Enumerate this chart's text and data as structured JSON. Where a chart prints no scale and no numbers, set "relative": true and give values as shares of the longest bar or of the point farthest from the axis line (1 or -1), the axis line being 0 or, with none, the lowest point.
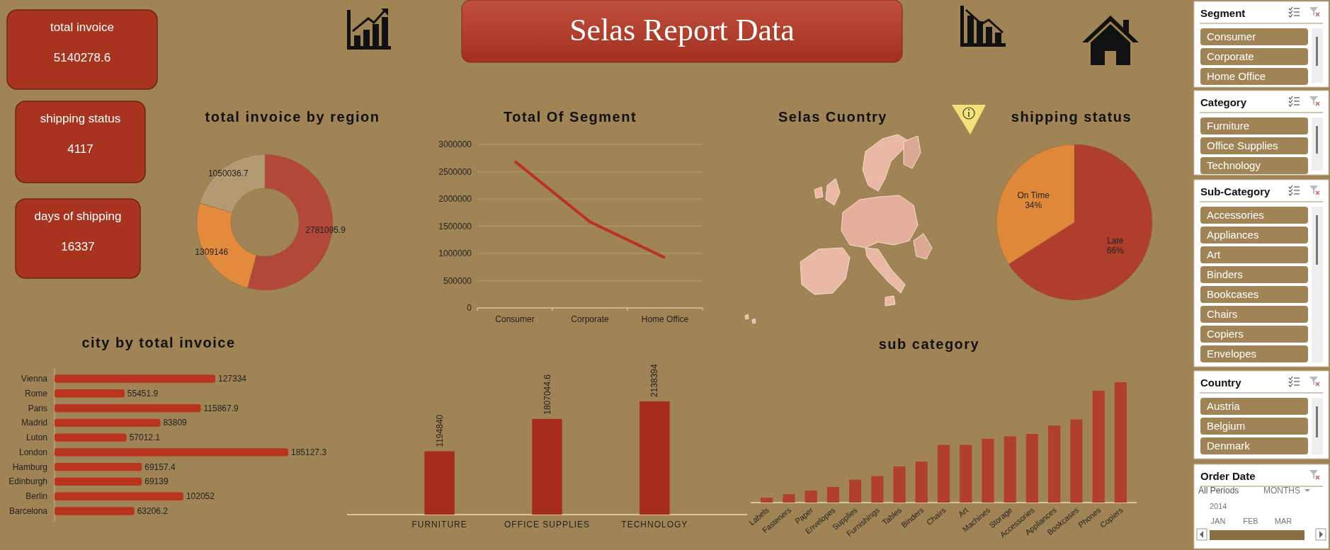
{
  "chart_data": [
    {
      "type": "other",
      "title": "Selas Report Data"
    },
    {
      "type": "other",
      "title": "total invoice",
      "annotations": [
        "5140278.6"
      ]
    },
    {
      "type": "other",
      "title": "shipping status",
      "annotations": [
        "4117"
      ]
    },
    {
      "type": "other",
      "title": "days of shipping",
      "annotations": [
        "16337"
      ]
    },
    {
      "type": "donut",
      "title": "total invoice by region",
      "categories": [
        null,
        null,
        null
      ],
      "values": [
        2781095.9,
        1309146,
        1050036.7
      ],
      "colors": [
        "#b2483a",
        "#e38a3c",
        "#b49a72"
      ],
      "data_labels": true
    },
    {
      "type": "line",
      "title": "Total Of Segment",
      "categories": [
        "Consumer",
        "Corporate",
        "Home Office"
      ],
      "series": [
        {
          "color": "#b8341f",
          "values": [
            2690000,
            1580000,
            920000
          ]
        }
      ],
      "ylim": [
        0,
        3000000
      ],
      "yticks": [
        0,
        500000,
        1000000,
        1500000,
        2000000,
        2500000,
        3000000
      ],
      "grid": "y",
      "marker": "none"
    },
    {
      "type": "other",
      "title": "Selas Cuontry"
    },
    {
      "type": "pie",
      "title": "shipping status",
      "categories": [
        "Late",
        "On Time"
      ],
      "values": [
        66,
        34
      ],
      "colors": [
        "#b03e2c",
        "#e0883a"
      ],
      "value_labels": [
        "66%",
        "34%"
      ]
    },
    {
      "type": "bar",
      "orientation": "horizontal",
      "title": "city by total invoice",
      "categories": [
        "Vienna",
        "Rome",
        "Paris",
        "Madrid",
        "Luton",
        "London",
        "Hamburg",
        "Edinburgh",
        "Berlin",
        "Barcelona"
      ],
      "values": [
        127334,
        55451.9,
        115867.9,
        83809,
        57012.1,
        185127.3,
        69157.4,
        69139,
        102052,
        63206.2
      ],
      "color": "#b8341f",
      "data_labels": true,
      "tick_labels": "y"
    },
    {
      "type": "bar",
      "categories": [
        "FURNITURE",
        "OFFICE SUPPLIES",
        "TECHNOLOGY"
      ],
      "values": [
        1194840,
        1807044.6,
        2138394
      ],
      "color": "#a82e1c",
      "data_labels": true,
      "tick_labels": "x"
    },
    {
      "type": "bar",
      "title": "sub category",
      "relative": true,
      "categories": [
        "Labels",
        "Fasteners",
        "Paper",
        "Envelopes",
        "Supplies",
        "Furnishings",
        "Tables",
        "Binders",
        "Chairs",
        "Art",
        "Machines",
        "Storage",
        "Accessories",
        "Appliances",
        "Bookcases",
        "Phones",
        "Copiers"
      ],
      "values": [
        0.04,
        0.07,
        0.1,
        0.13,
        0.19,
        0.22,
        0.3,
        0.34,
        0.48,
        0.48,
        0.53,
        0.55,
        0.57,
        0.64,
        0.69,
        0.93,
        1
      ],
      "color": "#b0402c"
    },
    {
      "type": "other",
      "title": "Segment",
      "annotations": [
        "Consumer",
        "Corporate",
        "Home Office"
      ]
    },
    {
      "type": "other",
      "title": "Category",
      "annotations": [
        "Furniture",
        "Office Supplies",
        "Technology"
      ]
    },
    {
      "type": "other",
      "title": "Sub-Category",
      "annotations": [
        "Accessories",
        "Appliances",
        "Art",
        "Binders",
        "Bookcases",
        "Chairs",
        "Copiers",
        "Envelopes"
      ]
    },
    {
      "type": "other",
      "title": "Country",
      "annotations": [
        "Austria",
        "Belgium",
        "Denmark"
      ]
    },
    {
      "type": "other",
      "title": "Order Date",
      "annotations": [
        "All Periods",
        "MONTHS",
        "2014",
        "JAN",
        "FEB",
        "MAR"
      ]
    }
  ]
}
